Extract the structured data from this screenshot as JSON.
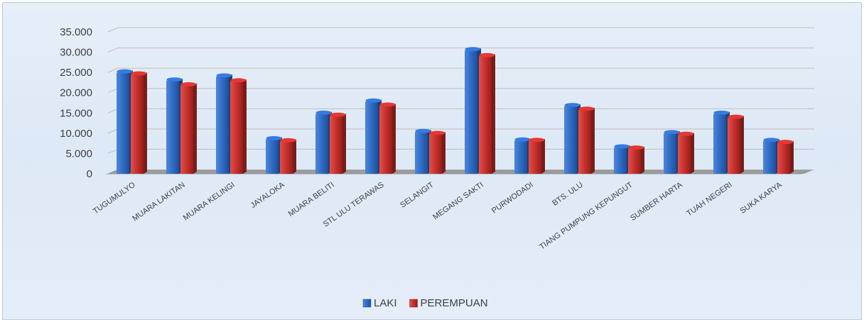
{
  "chart_data": {
    "type": "bar",
    "style": "3d-column",
    "title": "",
    "xlabel": "",
    "ylabel": "",
    "ylim": [
      0,
      35000
    ],
    "yticks": [
      "0",
      "5.000",
      "10.000",
      "15.000",
      "20.000",
      "25.000",
      "30.000",
      "35.000"
    ],
    "grid": true,
    "legend_position": "bottom",
    "categories": [
      "TUGUMULYO",
      "MUARA LAKITAN",
      "MUARA KELINGI",
      "JAYALOKA",
      "MUARA BELITI",
      "STL ULU TERAWAS",
      "SELANGIT",
      "MEGANG SAKTI",
      "PURWODADI",
      "BTS. ULU",
      "TIANG PUMPUNG KEPUNGUT",
      "SUMBER HARTA",
      "TUAH NEGERI",
      "SUKA KARYA"
    ],
    "series": [
      {
        "name": "LAKI",
        "color": "#2f6bc4",
        "values": [
          25000,
          23000,
          24000,
          8500,
          14800,
          17800,
          10300,
          30500,
          8200,
          16700,
          6500,
          10000,
          14800,
          8100
        ]
      },
      {
        "name": "PEREMPUAN",
        "color": "#c8302c",
        "values": [
          24500,
          21800,
          22800,
          8000,
          14300,
          16800,
          9800,
          29000,
          8100,
          15800,
          6200,
          9600,
          13800,
          7600
        ]
      }
    ]
  }
}
